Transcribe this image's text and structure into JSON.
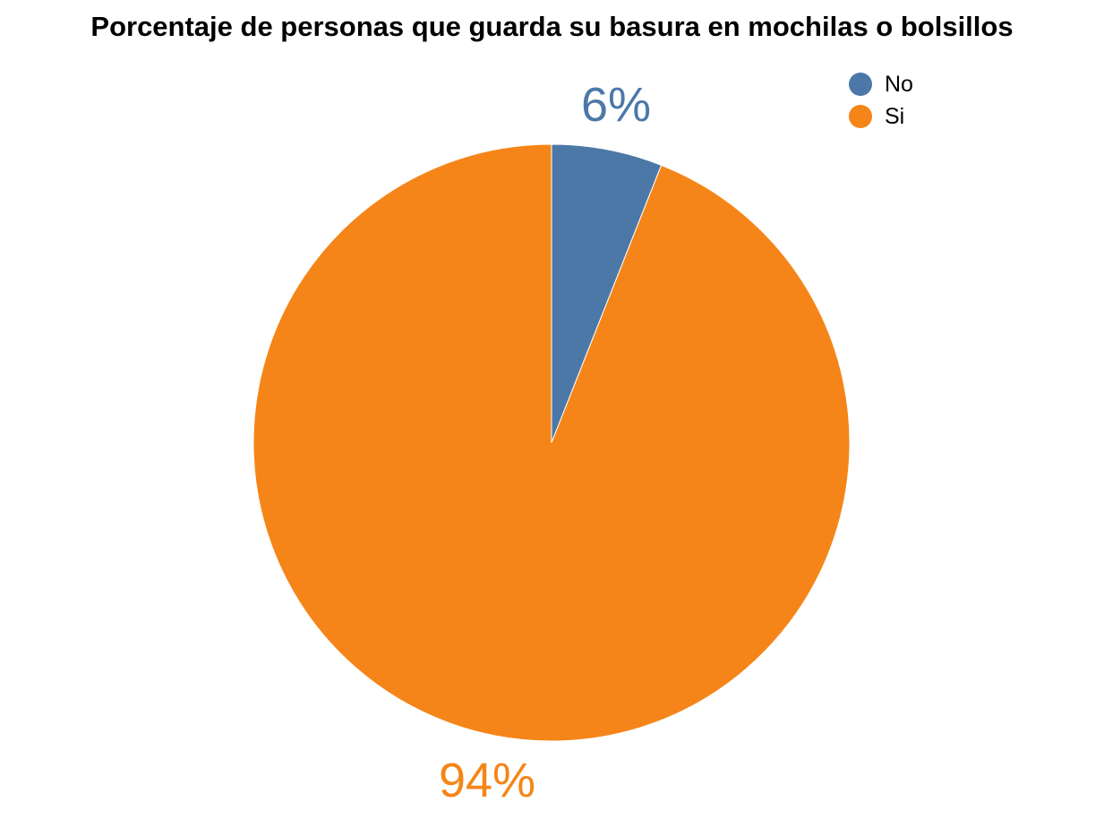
{
  "chart_data": {
    "type": "pie",
    "title": "Porcentaje de personas que guarda su basura en mochilas o bolsillos",
    "slices": [
      {
        "label": "No",
        "value": 6,
        "display": "6%",
        "color": "#4c78a8"
      },
      {
        "label": "Si",
        "value": 94,
        "display": "94%",
        "color": "#f58518"
      }
    ],
    "legend": {
      "position": "top-right"
    }
  }
}
